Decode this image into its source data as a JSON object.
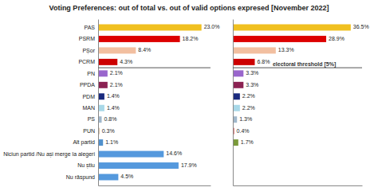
{
  "chart_data": [
    {
      "type": "bar",
      "orientation": "horizontal",
      "title": "Voting Preferences: out of total vs. out of valid options expresed [November 2022]",
      "categories": [
        "PAS",
        "PSRM",
        "PȘor",
        "PCRM",
        "PN",
        "PPDA",
        "PDM",
        "MAN",
        "PS",
        "PUN",
        "Alt partid",
        "Niciun partid /Nu ași merge la alegeri",
        "Nu știu",
        "Nu răspund"
      ],
      "values": [
        23.0,
        18.2,
        8.4,
        4.3,
        2.1,
        2.1,
        1.4,
        1.4,
        0.8,
        0.3,
        1.1,
        14.6,
        17.9,
        4.5
      ],
      "value_labels": [
        "23.0%",
        "18.2%",
        "8.4%",
        "4.3%",
        "2.1%",
        "2.1%",
        "1.4%",
        "1.4%",
        "0.8%",
        "0.3%",
        "1.1%",
        "14.6%",
        "17.9%",
        "4.5%"
      ],
      "colors": [
        "#f0c020",
        "#dd0000",
        "#f2bfa0",
        "#cc0000",
        "#9966cc",
        "#8b2252",
        "#1a2a7e",
        "#a8d8e8",
        "#a0b8cc",
        "#c8aa88",
        "#5090cc",
        "#5599dd",
        "#5599dd",
        "#5599dd"
      ],
      "xlim": [
        0,
        25.0
      ],
      "data_labels": true,
      "tick_labels": "y"
    },
    {
      "type": "bar",
      "orientation": "horizontal",
      "categories": [
        null,
        null,
        null,
        null,
        null,
        null,
        null,
        null,
        null,
        null,
        null,
        null,
        null,
        null
      ],
      "values": [
        36.5,
        28.9,
        13.3,
        6.8,
        3.3,
        3.3,
        2.2,
        2.2,
        1.3,
        0.4,
        1.7,
        null,
        null,
        null
      ],
      "value_labels": [
        "36.5%",
        "28.9%",
        "13.3%",
        "6.8%",
        "3.3%",
        "3.3%",
        "2.2%",
        "2.2%",
        "1.3%",
        "0.4%",
        "1.7%",
        null,
        null,
        null
      ],
      "colors": [
        "#f0c020",
        "#dd0000",
        "#f2bfa0",
        "#cc0000",
        "#9966cc",
        "#8b2252",
        "#1a2a7e",
        "#a8d8e8",
        "#a0b8cc",
        "#cc3333",
        "#7a9a3a",
        null,
        null,
        null
      ],
      "xlim": [
        0,
        40.0
      ],
      "annotations": [
        "electoral threshold [5%]"
      ],
      "data_labels": true,
      "tick_labels": false
    }
  ]
}
